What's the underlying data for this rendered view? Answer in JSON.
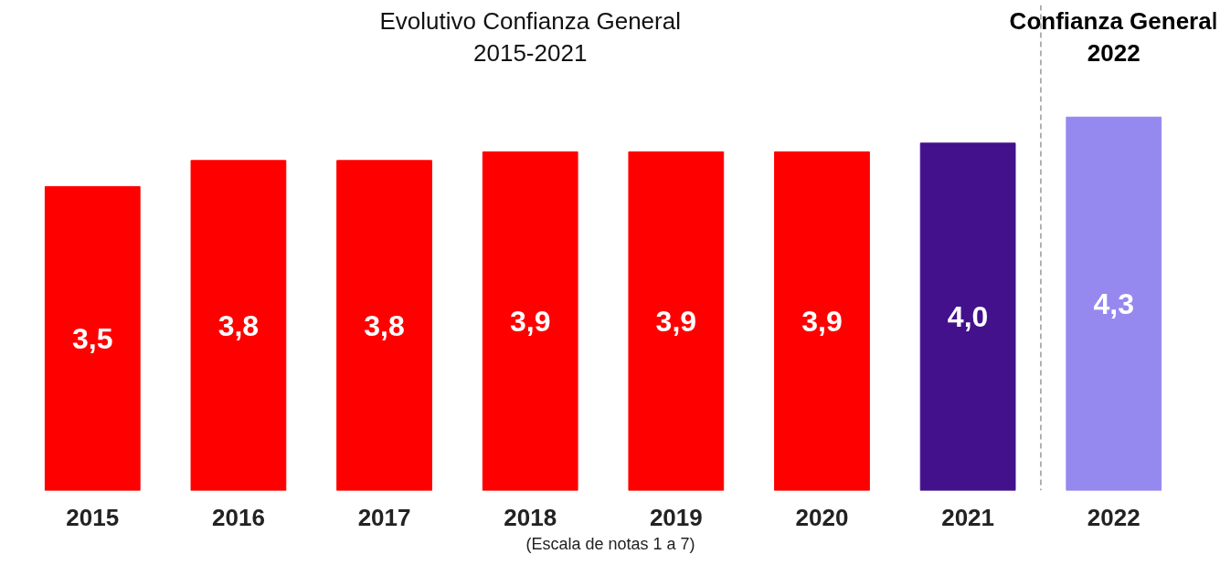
{
  "chart_data": {
    "type": "bar",
    "title": "Evolutivo Confianza General\n2015-2021",
    "categories": [
      "2015",
      "2016",
      "2017",
      "2018",
      "2019",
      "2020",
      "2021",
      "2022"
    ],
    "values": [
      3.5,
      3.8,
      3.8,
      3.9,
      3.9,
      3.9,
      4.0,
      4.3
    ],
    "colors": [
      "#ff0000",
      "#ff0000",
      "#ff0000",
      "#ff0000",
      "#ff0000",
      "#ff0000",
      "#43118c",
      "#9589ef"
    ],
    "value_labels": [
      "3,5",
      "3,8",
      "3,8",
      "3,9",
      "3,9",
      "3,9",
      "4,0",
      "4,3"
    ],
    "annotations": [
      "Confianza General\n2022",
      "(Escala de notas 1 a 7)"
    ]
  }
}
